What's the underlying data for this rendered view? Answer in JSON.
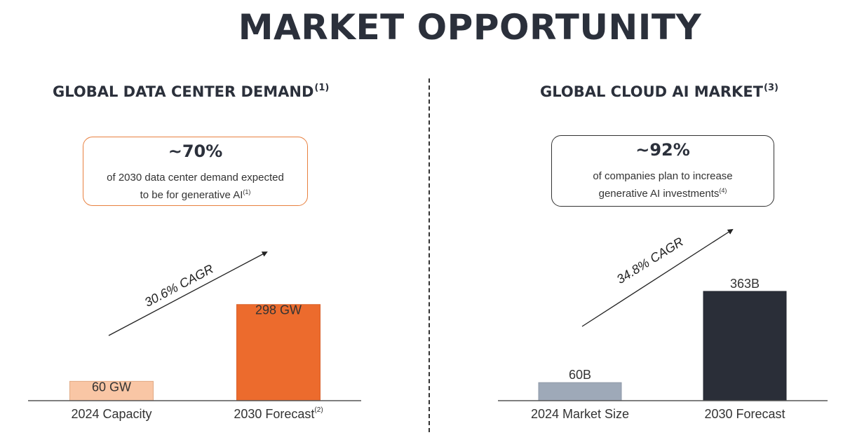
{
  "title": "MARKET OPPORTUNITY",
  "colors": {
    "text_dark": "#2b303b",
    "orange_light": "#f9c6a5",
    "orange": "#ec6b2d",
    "slate_light": "#9ea9b8",
    "navy": "#2a2e38",
    "orange_border": "#e8803f",
    "dark_border": "#333333"
  },
  "left": {
    "heading": "GLOBAL DATA CENTER DEMAND",
    "heading_note": "(1)",
    "callout": {
      "stat": "~70%",
      "desc_line1": "of 2030 data center demand expected",
      "desc_line2": "to be for generative AI",
      "desc_note": "(1)"
    },
    "cagr_label": "30.6% CAGR"
  },
  "right": {
    "heading": "GLOBAL CLOUD AI MARKET",
    "heading_note": "(3)",
    "callout": {
      "stat": "~92%",
      "desc_line1": "of companies plan to increase",
      "desc_line2": "generative AI investments",
      "desc_note": "(4)"
    },
    "cagr_label": "34.8% CAGR"
  },
  "chart_data": [
    {
      "type": "bar",
      "title": "GLOBAL DATA CENTER DEMAND",
      "categories": [
        "2024 Capacity",
        "2030 Forecast"
      ],
      "category_notes": [
        "",
        "(2)"
      ],
      "values": [
        60,
        298
      ],
      "data_labels": [
        "60 GW",
        "298 GW"
      ],
      "bar_colors": [
        "#f9c6a5",
        "#ec6b2d"
      ],
      "annotation": "30.6% CAGR",
      "grid": false,
      "ylim": [
        0,
        330
      ]
    },
    {
      "type": "bar",
      "title": "GLOBAL CLOUD AI MARKET",
      "categories": [
        "2024 Market Size",
        "2030 Forecast"
      ],
      "category_notes": [
        "",
        ""
      ],
      "values": [
        60,
        363
      ],
      "data_labels": [
        "60B",
        "363B"
      ],
      "bar_colors": [
        "#9ea9b8",
        "#2a2e38"
      ],
      "annotation": "34.8% CAGR",
      "grid": false,
      "ylim": [
        0,
        435
      ]
    }
  ]
}
